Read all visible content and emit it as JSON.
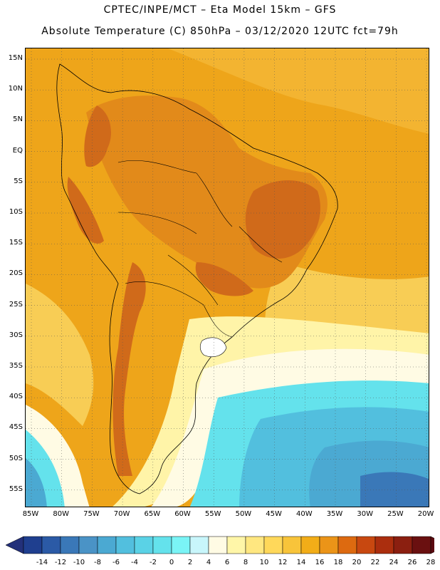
{
  "header": {
    "line1": "CPTEC/INPE/MCT –  Eta Model 15km – GFS",
    "line2": "Absolute Temperature (C) 850hPa – 03/12/2020 12UTC fct=79h"
  },
  "lat_labels": [
    "15N",
    "10N",
    "5N",
    "EQ",
    "5S",
    "10S",
    "15S",
    "20S",
    "25S",
    "30S",
    "35S",
    "40S",
    "45S",
    "50S",
    "55S"
  ],
  "lon_labels": [
    "85W",
    "80W",
    "75W",
    "70W",
    "65W",
    "60W",
    "55W",
    "50W",
    "45W",
    "40W",
    "35W",
    "30W",
    "25W",
    "20W"
  ],
  "colorbar": {
    "labels": [
      "-14",
      "-12",
      "-10",
      "-8",
      "-6",
      "-4",
      "-2",
      "0",
      "2",
      "4",
      "6",
      "8",
      "10",
      "12",
      "14",
      "16",
      "18",
      "20",
      "22",
      "24",
      "26",
      "28"
    ],
    "colors": [
      "#1f3f8f",
      "#2b5aa6",
      "#3a78b8",
      "#4a93c6",
      "#4ba9d2",
      "#52bfde",
      "#5ad2e6",
      "#64e2ec",
      "#7af4f6",
      "#c8f6fb",
      "#fffbe4",
      "#fff6a8",
      "#ffe780",
      "#ffd85a",
      "#f8c43a",
      "#f2ad18",
      "#eb9418",
      "#dd6a10",
      "#c84810",
      "#ab2e0e",
      "#8b1f10",
      "#6a1010"
    ],
    "end_low": "#23307a",
    "end_high": "#5a0a10"
  },
  "colors": {
    "hot": "#d06a1a",
    "warm": "#eea51a",
    "mild": "#f8cd55",
    "pale": "#fff4a8",
    "cream": "#fffbe4",
    "cyan": "#5ad2e6",
    "blue": "#4aa9d2",
    "deep": "#2b5aa6"
  }
}
